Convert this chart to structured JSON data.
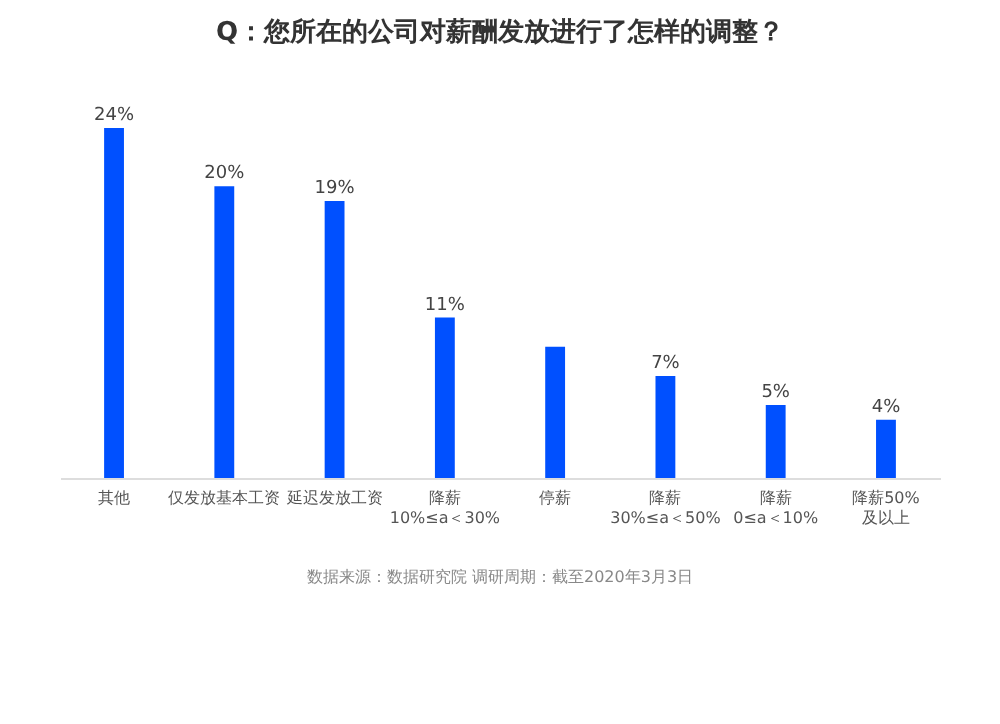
{
  "chart_data": {
    "type": "bar",
    "title": "Q：您所在的公司对薪酬发放进行了怎样的调整？",
    "categories": [
      "其他",
      "仅发放基本工资",
      "延迟发放工资",
      "降薪\n10%≤a＜30%",
      "停薪",
      "降薪\n30%≤a＜50%",
      "降薪\n0≤a＜10%",
      "降薪50%\n及以上"
    ],
    "values": [
      24,
      20,
      19,
      11,
      9,
      7,
      5,
      4
    ],
    "value_labels": [
      "24%",
      "20%",
      "19%",
      "11%",
      null,
      "7%",
      "5%",
      "4%"
    ],
    "color": "#0050ff",
    "annotations": [
      "数据来源：数据研究院",
      "调研周期：截至2020年3月3日"
    ]
  }
}
